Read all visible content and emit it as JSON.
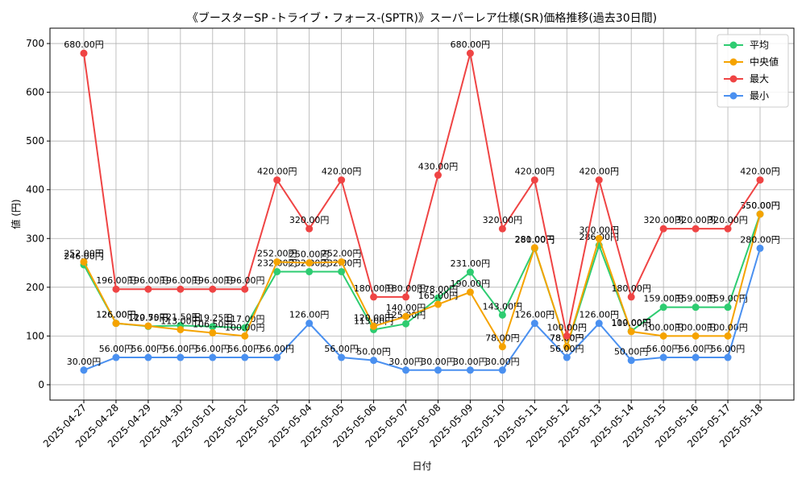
{
  "chart_data": {
    "type": "line",
    "title": "《ブースターSP -トライブ・フォース-(SPTR)》スーパーレア仕様(SR)価格推移(過去30日間)",
    "xlabel": "日付",
    "ylabel": "値 (円)",
    "ylim": [
      0,
      700
    ],
    "yticks": [
      0,
      100,
      200,
      300,
      400,
      500,
      600,
      700
    ],
    "grid": true,
    "legend_position": "top-right",
    "label_suffix": "円",
    "categories": [
      "2025-04-27",
      "2025-04-28",
      "2025-04-29",
      "2025-04-30",
      "2025-05-01",
      "2025-05-02",
      "2025-05-03",
      "2025-05-04",
      "2025-05-05",
      "2025-05-06",
      "2025-05-07",
      "2025-05-08",
      "2025-05-09",
      "2025-05-10",
      "2025-05-11",
      "2025-05-12",
      "2025-05-13",
      "2025-05-14",
      "2025-05-15",
      "2025-05-16",
      "2025-05-17",
      "2025-05-18"
    ],
    "series": [
      {
        "name": "平均",
        "color": "#2ecc71",
        "values": [
          246,
          126,
          119.75,
          121.5,
          119.25,
          117,
          232,
          232,
          232,
          113,
          125,
          178,
          231,
          143,
          280,
          78,
          286,
          110,
          159,
          159,
          159,
          350
        ]
      },
      {
        "name": "中央値",
        "color": "#f5a300",
        "values": [
          252,
          126,
          120.5,
          113,
          106.5,
          100,
          252,
          250,
          252,
          120,
          140,
          165,
          190,
          78,
          281,
          78,
          300,
          109,
          100,
          100,
          100,
          350
        ]
      },
      {
        "name": "最大",
        "color": "#ef4444",
        "values": [
          680,
          196,
          196,
          196,
          196,
          196,
          420,
          320,
          420,
          180,
          180,
          430,
          680,
          320,
          420,
          100,
          420,
          180,
          320,
          320,
          320,
          420
        ]
      },
      {
        "name": "最小",
        "color": "#4a90f0",
        "values": [
          30,
          56,
          56,
          56,
          56,
          56,
          56,
          126,
          56,
          50,
          30,
          30,
          30,
          30,
          126,
          56,
          126,
          50,
          56,
          56,
          56,
          280
        ]
      }
    ]
  }
}
